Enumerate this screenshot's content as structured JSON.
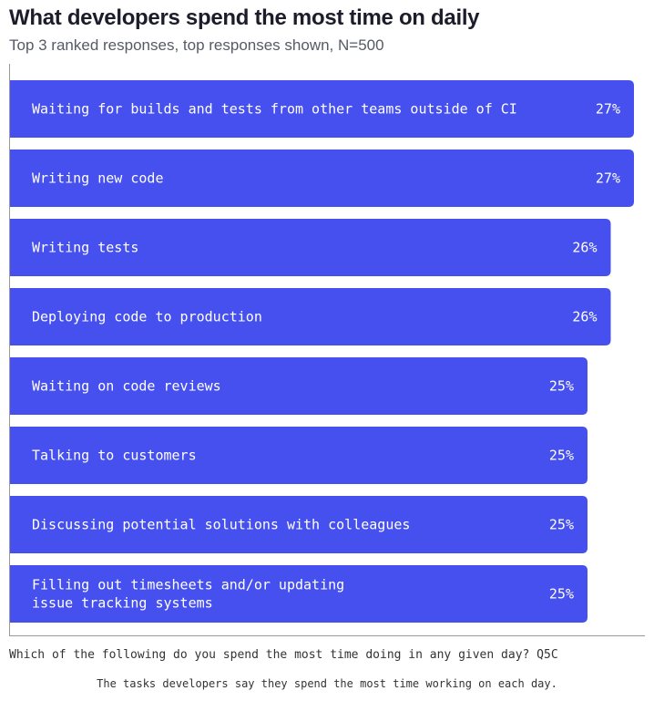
{
  "chart_data": {
    "type": "bar",
    "orientation": "horizontal",
    "title": "What developers spend the most time on daily",
    "subtitle": "Top 3 ranked responses, top responses shown, N=500",
    "categories": [
      [
        "Waiting for builds and tests from other teams outside of CI"
      ],
      [
        "Writing new code"
      ],
      [
        "Writing tests"
      ],
      [
        "Deploying code to production"
      ],
      [
        "Waiting on code reviews"
      ],
      [
        "Talking to customers"
      ],
      [
        "Discussing potential solutions with colleagues"
      ],
      [
        "Filling out timesheets and/or updating",
        "issue tracking systems"
      ]
    ],
    "values": [
      27,
      27,
      26,
      26,
      25,
      25,
      25,
      25
    ],
    "value_labels": [
      "27%",
      "27%",
      "26%",
      "26%",
      "25%",
      "25%",
      "25%",
      "25%"
    ],
    "xlim": [
      0,
      27
    ],
    "grid": false,
    "bar_color": "#4650ef"
  },
  "question": "Which of the following do you spend the most time doing in any given day? Q5C",
  "caption": "The tasks developers say they spend the most time working on each day."
}
